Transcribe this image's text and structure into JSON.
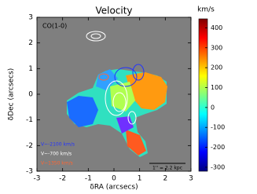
{
  "chart_data": {
    "type": "image",
    "title": "Velocity",
    "subtitle": "CO(1-0)",
    "xlabel": "δRA (arcsecs)",
    "ylabel": "δDec (arcsecs)",
    "xlim": [
      -3,
      3
    ],
    "ylim": [
      -3,
      3
    ],
    "xticks": [
      -3,
      -2,
      -1,
      0,
      1,
      2,
      3
    ],
    "yticks": [
      -3,
      -2,
      -1,
      0,
      1,
      2,
      3
    ],
    "colorbar": {
      "label": "km/s",
      "lim": [
        -320,
        445
      ],
      "ticks": [
        -300,
        -200,
        -100,
        0,
        100,
        200,
        300,
        400
      ]
    },
    "legend": [
      {
        "text": "V~-2100 km/s",
        "color": "#2233ff"
      },
      {
        "text": "V~-700 km/s",
        "color": "#ffffff"
      },
      {
        "text": "V~1350 km/s",
        "color": "#ff6633"
      }
    ],
    "scalebar": "1'' = 2.2 kpc"
  }
}
